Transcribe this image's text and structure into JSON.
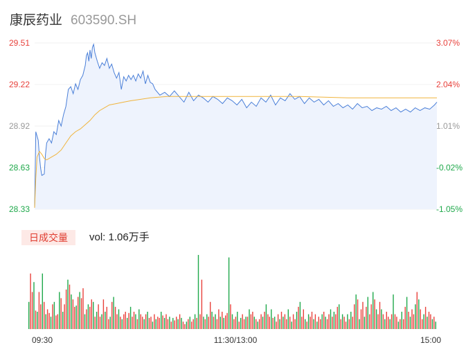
{
  "header": {
    "name": "康辰药业",
    "code": "603590.SH"
  },
  "volume_panel": {
    "tab_label": "日成交量",
    "vol_prefix": "vol: ",
    "vol_value": "1.06万手"
  },
  "colors": {
    "price_line": "#4a7fd8",
    "avg_line": "#f0b43c",
    "up": "#e8413b",
    "down": "#1ea84a",
    "neutral": "#999999",
    "area_fill": "#eef3fd"
  },
  "chart_data": {
    "type": "line",
    "title": "",
    "xlabel": "",
    "ylabel": "",
    "ylim": [
      28.33,
      29.51
    ],
    "pct_range": [
      -1.05,
      3.07
    ],
    "pre_close": 28.63,
    "y_ticks": [
      "29.51",
      "29.22",
      "28.92",
      "28.63",
      "28.33"
    ],
    "pct_ticks": [
      "3.07%",
      "2.04%",
      "1.01%",
      "-0.02%",
      "-1.05%"
    ],
    "x_ticks": [
      "09:30",
      "11:30/13:00",
      "15:00"
    ],
    "price": [
      [
        0,
        28.34
      ],
      [
        1,
        28.88
      ],
      [
        3,
        28.82
      ],
      [
        4,
        28.7
      ],
      [
        5,
        28.62
      ],
      [
        6,
        28.57
      ],
      [
        8,
        28.58
      ],
      [
        9,
        28.72
      ],
      [
        10,
        28.8
      ],
      [
        12,
        28.83
      ],
      [
        14,
        28.8
      ],
      [
        16,
        28.88
      ],
      [
        18,
        28.86
      ],
      [
        20,
        28.96
      ],
      [
        22,
        28.92
      ],
      [
        24,
        29.0
      ],
      [
        26,
        29.06
      ],
      [
        28,
        29.18
      ],
      [
        30,
        29.2
      ],
      [
        32,
        29.15
      ],
      [
        34,
        29.22
      ],
      [
        36,
        29.18
      ],
      [
        38,
        29.25
      ],
      [
        40,
        29.28
      ],
      [
        42,
        29.35
      ],
      [
        43,
        29.42
      ],
      [
        44,
        29.44
      ],
      [
        45,
        29.38
      ],
      [
        46,
        29.46
      ],
      [
        47,
        29.4
      ],
      [
        48,
        29.48
      ],
      [
        49,
        29.5
      ],
      [
        50,
        29.44
      ],
      [
        52,
        29.38
      ],
      [
        54,
        29.33
      ],
      [
        56,
        29.37
      ],
      [
        58,
        29.35
      ],
      [
        60,
        29.4
      ],
      [
        62,
        29.33
      ],
      [
        64,
        29.36
      ],
      [
        66,
        29.3
      ],
      [
        68,
        29.26
      ],
      [
        70,
        29.3
      ],
      [
        72,
        29.18
      ],
      [
        74,
        29.27
      ],
      [
        76,
        29.24
      ],
      [
        78,
        29.28
      ],
      [
        80,
        29.25
      ],
      [
        82,
        29.28
      ],
      [
        84,
        29.24
      ],
      [
        86,
        29.29
      ],
      [
        88,
        29.26
      ],
      [
        90,
        29.31
      ],
      [
        92,
        29.22
      ],
      [
        94,
        29.28
      ],
      [
        96,
        29.23
      ],
      [
        98,
        29.22
      ],
      [
        100,
        29.18
      ],
      [
        104,
        29.14
      ],
      [
        108,
        29.16
      ],
      [
        112,
        29.13
      ],
      [
        116,
        29.17
      ],
      [
        120,
        29.13
      ],
      [
        124,
        29.09
      ],
      [
        128,
        29.16
      ],
      [
        132,
        29.1
      ],
      [
        136,
        29.14
      ],
      [
        140,
        29.12
      ],
      [
        144,
        29.09
      ],
      [
        148,
        29.13
      ],
      [
        152,
        29.11
      ],
      [
        156,
        29.08
      ],
      [
        160,
        29.12
      ],
      [
        164,
        29.1
      ],
      [
        168,
        29.07
      ],
      [
        172,
        29.11
      ],
      [
        176,
        29.05
      ],
      [
        180,
        29.09
      ],
      [
        184,
        29.06
      ],
      [
        188,
        29.12
      ],
      [
        192,
        29.09
      ],
      [
        196,
        29.14
      ],
      [
        200,
        29.07
      ],
      [
        204,
        29.12
      ],
      [
        208,
        29.1
      ],
      [
        212,
        29.15
      ],
      [
        216,
        29.11
      ],
      [
        220,
        29.13
      ],
      [
        224,
        29.08
      ],
      [
        228,
        29.12
      ],
      [
        232,
        29.09
      ],
      [
        236,
        29.11
      ],
      [
        240,
        29.07
      ],
      [
        244,
        29.1
      ],
      [
        248,
        29.06
      ],
      [
        252,
        29.08
      ],
      [
        256,
        29.05
      ],
      [
        260,
        29.07
      ],
      [
        264,
        29.04
      ],
      [
        268,
        29.08
      ],
      [
        272,
        29.05
      ],
      [
        276,
        29.06
      ],
      [
        280,
        29.03
      ],
      [
        284,
        29.05
      ],
      [
        288,
        29.04
      ],
      [
        292,
        29.06
      ],
      [
        296,
        29.03
      ],
      [
        300,
        29.05
      ],
      [
        304,
        29.02
      ],
      [
        308,
        29.04
      ],
      [
        312,
        29.02
      ],
      [
        316,
        29.05
      ],
      [
        320,
        29.03
      ],
      [
        324,
        29.05
      ],
      [
        328,
        29.04
      ],
      [
        332,
        29.07
      ],
      [
        334,
        29.09
      ]
    ],
    "avg": [
      [
        0,
        28.34
      ],
      [
        1,
        28.55
      ],
      [
        2,
        28.7
      ],
      [
        4,
        28.74
      ],
      [
        6,
        28.72
      ],
      [
        8,
        28.69
      ],
      [
        10,
        28.68
      ],
      [
        14,
        28.7
      ],
      [
        18,
        28.72
      ],
      [
        22,
        28.75
      ],
      [
        26,
        28.8
      ],
      [
        30,
        28.85
      ],
      [
        34,
        28.88
      ],
      [
        38,
        28.9
      ],
      [
        42,
        28.93
      ],
      [
        46,
        28.96
      ],
      [
        50,
        29.0
      ],
      [
        54,
        29.03
      ],
      [
        58,
        29.05
      ],
      [
        62,
        29.07
      ],
      [
        68,
        29.08
      ],
      [
        74,
        29.09
      ],
      [
        80,
        29.1
      ],
      [
        88,
        29.11
      ],
      [
        96,
        29.12
      ],
      [
        110,
        29.13
      ],
      [
        140,
        29.13
      ],
      [
        180,
        29.13
      ],
      [
        220,
        29.13
      ],
      [
        260,
        29.12
      ],
      [
        300,
        29.12
      ],
      [
        334,
        29.12
      ]
    ],
    "volume_series": "one bar per minute, 241 bars, colored by price move",
    "volume": [
      22,
      45,
      30,
      38,
      15,
      14,
      30,
      20,
      45,
      22,
      12,
      16,
      13,
      10,
      20,
      22,
      11,
      12,
      30,
      25,
      14,
      20,
      32,
      40,
      36,
      28,
      24,
      18,
      19,
      26,
      30,
      25,
      33,
      12,
      16,
      20,
      18,
      24,
      22,
      10,
      14,
      20,
      10,
      12,
      24,
      14,
      18,
      8,
      10,
      22,
      26,
      18,
      12,
      16,
      10,
      8,
      12,
      14,
      9,
      13,
      18,
      10,
      14,
      12,
      8,
      16,
      12,
      10,
      8,
      12,
      14,
      9,
      10,
      6,
      12,
      8,
      10,
      9,
      14,
      11,
      9,
      12,
      8,
      10,
      6,
      9,
      7,
      10,
      8,
      12,
      9,
      6,
      4,
      6,
      8,
      10,
      6,
      8,
      12,
      9,
      60,
      12,
      40,
      10,
      8,
      12,
      10,
      22,
      14,
      10,
      12,
      8,
      16,
      10,
      14,
      9,
      11,
      13,
      58,
      20,
      12,
      8,
      10,
      14,
      6,
      9,
      12,
      8,
      10,
      10,
      16,
      12,
      14,
      10,
      8,
      6,
      8,
      12,
      10,
      14,
      20,
      12,
      10,
      16,
      9,
      10,
      6,
      12,
      8,
      14,
      10,
      12,
      8,
      16,
      10,
      6,
      12,
      8,
      14,
      18,
      22,
      10,
      16,
      8,
      6,
      12,
      10,
      14,
      8,
      12,
      6,
      10,
      8,
      12,
      14,
      10,
      8,
      12,
      16,
      10,
      14,
      12,
      18,
      20,
      8,
      12,
      10,
      6,
      12,
      8,
      14,
      10,
      20,
      28,
      24,
      8,
      16,
      22,
      10,
      18,
      26,
      12,
      20,
      30,
      24,
      16,
      12,
      22,
      16,
      12,
      8,
      14,
      10,
      8,
      12,
      28,
      12,
      10,
      6,
      8,
      14,
      8,
      18,
      26,
      14,
      10,
      16,
      12,
      20,
      30,
      24,
      16,
      8,
      12,
      18,
      10,
      14,
      12,
      8,
      10,
      6
    ]
  }
}
